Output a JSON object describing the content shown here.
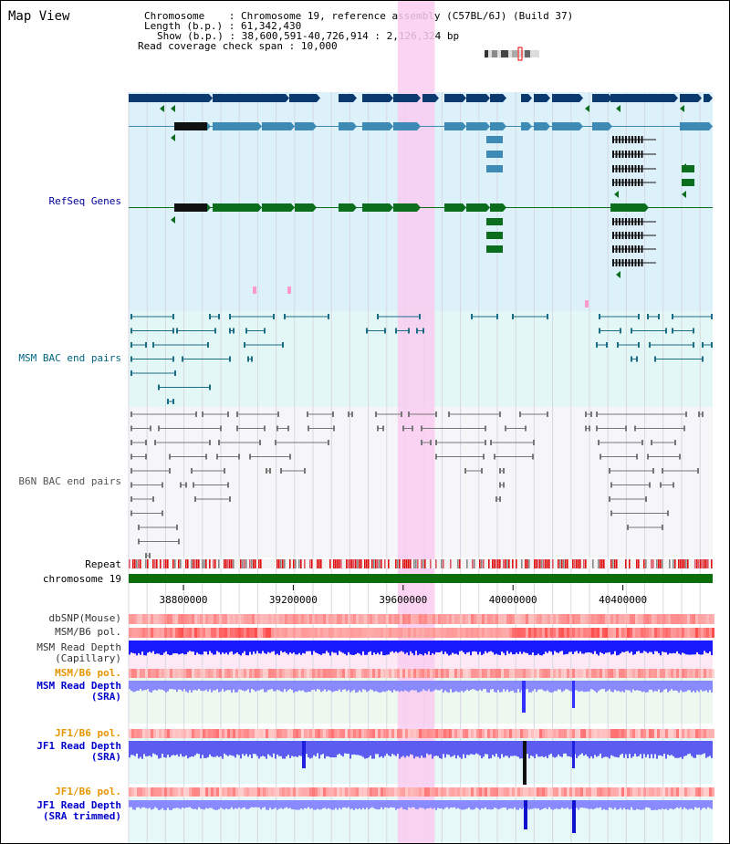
{
  "page": {
    "title": "Map View"
  },
  "info": {
    "chromosome_key": "Chromosome",
    "chromosome_value": "Chromosome 19, reference assembly (C57BL/6J) (Build 37)",
    "length_key": "Length (b.p.)",
    "length_value": "61,342,430",
    "show_key": "Show (b.p.)",
    "show_value": "38,600,591-40,726,914 : 2,126,324 bp",
    "coverage_key": "Read coverage check span",
    "coverage_value": "10,000"
  },
  "tracks": [
    {
      "id": "refseq",
      "label": "RefSeq Genes",
      "color": "#000099"
    },
    {
      "id": "msm_bac",
      "label": "MSM BAC end pairs",
      "color": "#006680"
    },
    {
      "id": "b6n_bac",
      "label": "B6N BAC end pairs",
      "color": "#555555"
    },
    {
      "id": "repeat",
      "label": "Repeat",
      "color": "#000000"
    },
    {
      "id": "chromosome",
      "label": "chromosome 19",
      "color": "#000000"
    },
    {
      "id": "dbsnp",
      "label": "dbSNP(Mouse)",
      "color": "#333333"
    },
    {
      "id": "msm_b6_pol_1",
      "label": "MSM/B6 pol.",
      "color": "#333333"
    },
    {
      "id": "msm_depth_cap",
      "label": "MSM Read Depth",
      "sublabel": "(Capillary)",
      "color": "#333333"
    },
    {
      "id": "msm_b6_pol_2",
      "label": "MSM/B6 pol.",
      "color": "#e69500"
    },
    {
      "id": "msm_depth_sra",
      "label": "MSM Read Depth",
      "sublabel": "(SRA)",
      "color": "#0000cc"
    },
    {
      "id": "jf1_b6_pol_1",
      "label": "JF1/B6 pol.",
      "color": "#e69500"
    },
    {
      "id": "jf1_depth_sra",
      "label": "JF1 Read Depth",
      "sublabel": "(SRA)",
      "color": "#0000cc"
    },
    {
      "id": "jf1_b6_pol_2",
      "label": "JF1/B6 pol.",
      "color": "#e69500"
    },
    {
      "id": "jf1_depth_trim",
      "label": "JF1 Read Depth",
      "sublabel": "(SRA trimmed)",
      "color": "#0000cc"
    }
  ],
  "axis": {
    "range": [
      38600591,
      40726914
    ],
    "ticks": [
      38800000,
      39200000,
      39600000,
      40000000,
      40400000
    ],
    "tick_labels": [
      "38800000",
      "39200000",
      "39600000",
      "40000000",
      "40400000"
    ]
  },
  "highlight": {
    "start": 39580000,
    "end": 39715000,
    "color": "#f9cdf0"
  },
  "colors": {
    "refseq_dark": "#0a3a6e",
    "refseq_mid": "#3d8bb5",
    "refseq_green": "#0b6e1c",
    "msm_bac": "#1a6d86",
    "b6n_bac": "#777777",
    "chromosome_bar": "#0b6e0b",
    "depth_blue": "#1a1aff",
    "depth_light": "#8a8aff"
  }
}
